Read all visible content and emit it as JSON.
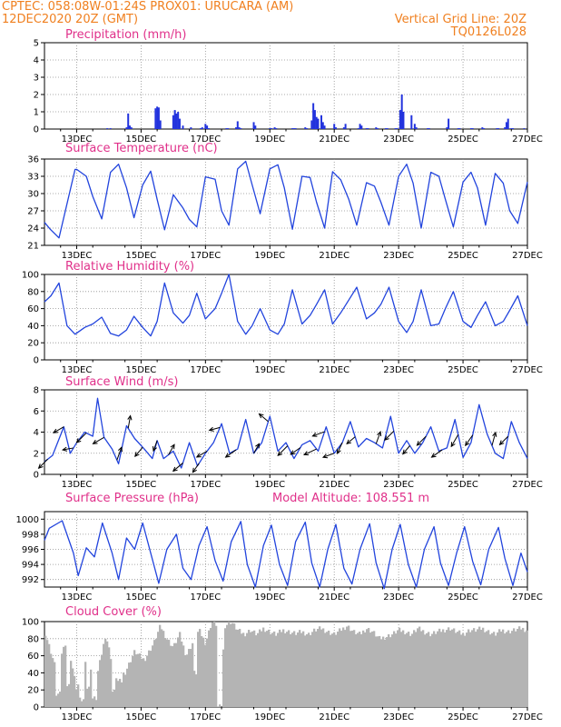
{
  "header": {
    "line1": "CPTEC:   058:08W-01:24S   PROX01: URUCARA (AM)",
    "line2": "12DEC2020 20Z (GMT)",
    "right1": "Vertical Grid Line: 20Z",
    "right2": "TQ0126L028"
  },
  "colors": {
    "header": "#f08020",
    "title": "#e0308a",
    "line": "#2244dd",
    "bar": "#2233dd",
    "cloud": "#b4b4b4",
    "grid": "#909090"
  },
  "chart_data": [
    {
      "type": "bar",
      "title": "Precipitation (mm/h)",
      "ylim": [
        0,
        5
      ],
      "yticks": [
        "0",
        "1",
        "2",
        "3",
        "4",
        "5"
      ],
      "xticks": [
        "13DEC",
        "15DEC",
        "17DEC",
        "19DEC",
        "21DEC",
        "23DEC",
        "25DEC",
        "27DEC"
      ],
      "x": [
        13.95,
        14.05,
        14.55,
        14.6,
        14.65,
        14.7,
        15.45,
        15.5,
        15.55,
        15.6,
        16.0,
        16.05,
        16.1,
        16.15,
        16.2,
        16.3,
        16.55,
        16.85,
        16.9,
        17.0,
        17.05,
        17.1,
        17.65,
        17.7,
        17.95,
        18.0,
        18.05,
        18.1,
        18.5,
        18.55,
        19.0,
        19.05,
        19.15,
        19.2,
        19.7,
        19.75,
        19.8,
        20.1,
        20.15,
        20.3,
        20.35,
        20.4,
        20.45,
        20.5,
        20.6,
        20.65,
        20.7,
        21.0,
        21.05,
        21.3,
        21.35,
        21.75,
        21.8,
        21.85,
        22.0,
        22.05,
        22.3,
        22.35,
        22.6,
        22.65,
        22.9,
        22.95,
        23.05,
        23.1,
        23.15,
        23.4,
        23.5,
        23.55,
        23.9,
        23.95,
        24.5,
        24.55,
        24.85,
        24.9,
        25.25,
        25.3,
        25.6,
        25.65,
        26.05,
        26.1,
        26.3,
        26.35,
        26.4,
        26.5,
        26.55,
        26.9
      ],
      "values": [
        0.05,
        0.05,
        0.1,
        0.9,
        0.2,
        0.1,
        1.2,
        1.3,
        1.25,
        0.5,
        0.8,
        1.1,
        0.9,
        1.0,
        0.6,
        0.2,
        0.1,
        0.05,
        0.1,
        0.3,
        0.2,
        0.05,
        0.05,
        0.05,
        0.1,
        0.45,
        0.1,
        0.05,
        0.4,
        0.2,
        0.05,
        0.05,
        0.1,
        0.05,
        0.05,
        0.05,
        0.05,
        0.1,
        0.05,
        0.5,
        1.5,
        1.1,
        0.7,
        0.6,
        0.8,
        0.4,
        0.2,
        0.3,
        0.1,
        0.1,
        0.3,
        0.05,
        0.3,
        0.2,
        0.05,
        0.05,
        0.1,
        0.05,
        0.05,
        0.05,
        0.05,
        0.05,
        1.1,
        2.0,
        1.0,
        0.8,
        0.3,
        0.1,
        0.05,
        0.05,
        0.1,
        0.6,
        0.05,
        0.05,
        0.05,
        0.05,
        0.1,
        0.05,
        0.05,
        0.05,
        0.1,
        0.4,
        0.6,
        0.05,
        0.05,
        0.05
      ]
    },
    {
      "type": "line",
      "title": "Surface Temperature (nC)",
      "ylim": [
        21,
        36
      ],
      "yticks": [
        "21",
        "24",
        "27",
        "30",
        "33",
        "36"
      ],
      "xticks": [
        "13DEC",
        "15DEC",
        "17DEC",
        "19DEC",
        "21DEC",
        "23DEC",
        "25DEC",
        "27DEC"
      ],
      "x": [
        12.0,
        12.18,
        12.45,
        12.95,
        13.0,
        13.3,
        13.5,
        13.78,
        14.05,
        14.3,
        14.55,
        14.78,
        15.05,
        15.3,
        15.5,
        15.73,
        16.0,
        16.3,
        16.5,
        16.73,
        17.0,
        17.3,
        17.5,
        17.73,
        18.0,
        18.25,
        18.45,
        18.7,
        19.0,
        19.25,
        19.45,
        19.7,
        20.0,
        20.25,
        20.45,
        20.7,
        20.95,
        21.2,
        21.45,
        21.7,
        22.0,
        22.25,
        22.45,
        22.7,
        23.0,
        23.25,
        23.45,
        23.7,
        24.0,
        24.25,
        24.45,
        24.7,
        25.0,
        25.25,
        25.45,
        25.7,
        26.0,
        26.25,
        26.45,
        26.7,
        27.0
      ],
      "values": [
        25.0,
        23.8,
        22.3,
        34.2,
        34.2,
        33.0,
        29.5,
        25.6,
        33.7,
        35.1,
        31.0,
        25.8,
        31.5,
        33.9,
        29.0,
        23.7,
        29.8,
        27.5,
        25.5,
        24.2,
        32.9,
        32.5,
        27.0,
        24.5,
        34.3,
        35.6,
        31.5,
        26.5,
        34.3,
        35.0,
        31.0,
        23.8,
        33.0,
        32.8,
        28.5,
        24.0,
        33.8,
        32.4,
        29.0,
        24.5,
        31.9,
        31.3,
        28.5,
        24.5,
        33.0,
        35.1,
        31.8,
        24.0,
        33.7,
        33.0,
        29.0,
        24.2,
        32.0,
        33.7,
        31.0,
        24.5,
        33.5,
        31.8,
        27.0,
        24.8,
        32.0
      ]
    },
    {
      "type": "line",
      "title": "Relative Humidity (%)",
      "ylim": [
        0,
        100
      ],
      "yticks": [
        "0",
        "20",
        "40",
        "60",
        "80",
        "100"
      ],
      "xticks": [
        "13DEC",
        "15DEC",
        "17DEC",
        "19DEC",
        "21DEC",
        "23DEC",
        "25DEC",
        "27DEC"
      ],
      "x": [
        12.0,
        12.2,
        12.45,
        12.7,
        12.95,
        13.25,
        13.5,
        13.78,
        14.05,
        14.3,
        14.55,
        14.78,
        15.05,
        15.3,
        15.5,
        15.73,
        16.0,
        16.3,
        16.5,
        16.73,
        17.0,
        17.3,
        17.5,
        17.73,
        18.0,
        18.25,
        18.45,
        18.7,
        19.0,
        19.25,
        19.45,
        19.7,
        20.0,
        20.25,
        20.45,
        20.7,
        20.95,
        21.2,
        21.45,
        21.7,
        22.0,
        22.25,
        22.45,
        22.7,
        23.0,
        23.25,
        23.45,
        23.7,
        24.0,
        24.25,
        24.45,
        24.7,
        25.0,
        25.25,
        25.45,
        25.7,
        26.0,
        26.25,
        26.45,
        26.7,
        27.0
      ],
      "values": [
        68.0,
        75.0,
        90.0,
        40.0,
        30.0,
        38.0,
        42.0,
        50.0,
        31.0,
        28.0,
        35.0,
        51.0,
        38.0,
        28.0,
        45.0,
        90.0,
        55.0,
        43.0,
        52.0,
        78.0,
        48.0,
        60.0,
        78.0,
        100.0,
        45.0,
        30.0,
        40.0,
        60.0,
        35.0,
        30.0,
        42.0,
        82.0,
        42.0,
        52.0,
        65.0,
        82.0,
        42.0,
        55.0,
        70.0,
        85.0,
        48.0,
        55.0,
        65.0,
        85.0,
        45.0,
        32.0,
        45.0,
        82.0,
        40.0,
        42.0,
        60.0,
        80.0,
        45.0,
        38.0,
        52.0,
        68.0,
        40.0,
        45.0,
        58.0,
        75.0,
        40.0
      ]
    },
    {
      "type": "line",
      "title": "Surface Wind (m/s)",
      "ylim": [
        0,
        8
      ],
      "yticks": [
        "0",
        "2",
        "4",
        "6",
        "8"
      ],
      "xticks": [
        "13DEC",
        "15DEC",
        "17DEC",
        "19DEC",
        "21DEC",
        "23DEC",
        "25DEC",
        "27DEC"
      ],
      "x": [
        12.0,
        12.25,
        12.6,
        12.8,
        13.0,
        13.25,
        13.5,
        13.65,
        13.85,
        14.1,
        14.3,
        14.55,
        14.8,
        15.1,
        15.35,
        15.5,
        15.7,
        16.0,
        16.25,
        16.5,
        16.75,
        17.0,
        17.25,
        17.5,
        17.75,
        18.0,
        18.25,
        18.5,
        18.75,
        19.0,
        19.25,
        19.5,
        19.75,
        20.0,
        20.25,
        20.5,
        20.75,
        21.0,
        21.25,
        21.5,
        21.75,
        22.0,
        22.25,
        22.5,
        22.75,
        23.0,
        23.25,
        23.5,
        23.75,
        24.0,
        24.25,
        24.5,
        24.75,
        25.0,
        25.25,
        25.5,
        25.75,
        26.0,
        26.25,
        26.5,
        26.75,
        27.0
      ],
      "values": [
        1.2,
        1.8,
        4.5,
        2.0,
        3.0,
        4.0,
        3.6,
        7.2,
        3.5,
        2.4,
        1.0,
        4.6,
        3.4,
        2.4,
        1.5,
        3.2,
        1.5,
        2.2,
        0.6,
        3.0,
        0.8,
        2.0,
        3.0,
        4.8,
        2.0,
        2.4,
        5.2,
        2.0,
        3.0,
        5.5,
        2.2,
        3.0,
        1.5,
        2.8,
        3.2,
        2.2,
        4.5,
        2.0,
        3.0,
        5.0,
        2.6,
        3.4,
        3.0,
        2.5,
        5.5,
        2.0,
        3.2,
        2.0,
        3.0,
        4.5,
        2.2,
        2.5,
        5.2,
        1.6,
        3.0,
        6.6,
        3.8,
        2.0,
        1.5,
        5.0,
        3.0,
        1.5
      ],
      "arrows_x": [
        12.1,
        12.6,
        12.9,
        13.3,
        13.85,
        14.25,
        14.6,
        15.05,
        15.5,
        15.85,
        16.3,
        16.8,
        17.05,
        17.45,
        17.95,
        18.5,
        18.95,
        19.55,
        19.95,
        20.45,
        20.7,
        21.0,
        21.25,
        21.65,
        22.3,
        22.85,
        23.35,
        23.85,
        24.35,
        24.85,
        25.3,
        25.9,
        26.4
      ],
      "arrows_dir_deg": [
        225,
        210,
        190,
        225,
        210,
        70,
        80,
        230,
        250,
        60,
        220,
        235,
        210,
        195,
        215,
        60,
        140,
        225,
        215,
        205,
        200,
        200,
        245,
        220,
        70,
        225,
        230,
        225,
        215,
        240,
        235,
        75,
        225
      ],
      "arrows_len": [
        14,
        13,
        12,
        15,
        14,
        15,
        14,
        13,
        12,
        13,
        14,
        12,
        13,
        12,
        14,
        12,
        13,
        15,
        13,
        15,
        14,
        13,
        13,
        12,
        14,
        14,
        12,
        14,
        14,
        15,
        14,
        15,
        13
      ]
    },
    {
      "type": "line",
      "title": "Surface Pressure (hPa)",
      "annotation": "Model Altitude: 108.551 m",
      "ylim": [
        991,
        1001
      ],
      "yticks": [
        "992",
        "994",
        "996",
        "998",
        "1000"
      ],
      "xticks": [
        "13DEC",
        "15DEC",
        "17DEC",
        "19DEC",
        "21DEC",
        "23DEC",
        "25DEC",
        "27DEC"
      ],
      "x": [
        12.0,
        12.15,
        12.55,
        12.9,
        13.05,
        13.3,
        13.55,
        13.8,
        14.1,
        14.3,
        14.55,
        14.8,
        15.05,
        15.3,
        15.55,
        15.8,
        16.1,
        16.3,
        16.55,
        16.8,
        17.05,
        17.3,
        17.55,
        17.8,
        18.1,
        18.3,
        18.55,
        18.8,
        19.05,
        19.3,
        19.55,
        19.8,
        20.1,
        20.3,
        20.55,
        20.8,
        21.05,
        21.3,
        21.55,
        21.8,
        22.1,
        22.3,
        22.55,
        22.8,
        23.05,
        23.3,
        23.55,
        23.8,
        24.1,
        24.3,
        24.55,
        24.8,
        25.05,
        25.3,
        25.55,
        25.8,
        26.1,
        26.3,
        26.55,
        26.8,
        27.0
      ],
      "values": [
        997.2,
        998.8,
        999.8,
        995.5,
        992.5,
        996.2,
        995.0,
        999.5,
        995.5,
        992.0,
        997.5,
        996.0,
        999.5,
        995.5,
        991.5,
        996.0,
        998.0,
        993.5,
        992.0,
        996.5,
        999.0,
        994.5,
        991.8,
        997.0,
        999.7,
        994.0,
        991.0,
        996.5,
        999.2,
        994.0,
        991.2,
        997.0,
        999.6,
        994.2,
        991.0,
        996.0,
        999.3,
        993.5,
        991.4,
        996.0,
        999.4,
        994.2,
        990.8,
        996.0,
        999.3,
        994.0,
        991.0,
        996.0,
        999.0,
        994.2,
        991.2,
        995.5,
        999.0,
        994.4,
        991.3,
        996.0,
        998.9,
        994.8,
        991.2,
        995.5,
        993.0
      ]
    },
    {
      "type": "bar",
      "title": "Cloud Cover (%)",
      "ylim": [
        0,
        100
      ],
      "yticks": [
        "0",
        "20",
        "40",
        "60",
        "80",
        "100"
      ],
      "xticks": [
        "13DEC",
        "15DEC",
        "17DEC",
        "19DEC",
        "21DEC",
        "23DEC",
        "25DEC",
        "27DEC"
      ],
      "profile_x": [
        12.0,
        12.35,
        12.7,
        13.0,
        13.3,
        13.6,
        13.9,
        14.2,
        14.5,
        14.8,
        15.1,
        15.4,
        15.6,
        15.8,
        16.0,
        16.2,
        16.4,
        16.6,
        16.8,
        17.0,
        17.2,
        17.4,
        17.45,
        17.6,
        17.8,
        18.0,
        18.2,
        18.4,
        18.6,
        18.8,
        19.0,
        19.2,
        19.4,
        19.6,
        19.8,
        20.0,
        20.2,
        20.4,
        20.6,
        20.8,
        21.0,
        21.2,
        21.4,
        21.6,
        21.8,
        22.0,
        22.2,
        22.4,
        22.6,
        22.8,
        23.0,
        23.2,
        23.4,
        23.6,
        23.8,
        24.0,
        24.2,
        24.4,
        24.6,
        24.8,
        25.0,
        25.2,
        25.4,
        25.6,
        25.8,
        26.0,
        26.2,
        26.4,
        26.6,
        26.8,
        27.0
      ],
      "profile_values": [
        90,
        45,
        80,
        20,
        60,
        30,
        85,
        35,
        40,
        65,
        55,
        75,
        95,
        80,
        70,
        85,
        60,
        75,
        90,
        75,
        100,
        95,
        0,
        95,
        100,
        90,
        85,
        90,
        85,
        92,
        88,
        85,
        90,
        88,
        86,
        88,
        85,
        90,
        92,
        88,
        85,
        90,
        95,
        88,
        85,
        92,
        88,
        80,
        82,
        85,
        90,
        88,
        85,
        92,
        88,
        85,
        88,
        90,
        92,
        88,
        85,
        90,
        90,
        92,
        88,
        85,
        90,
        88,
        90,
        92,
        90
      ],
      "notches_x": [
        12.42,
        12.72,
        13.15,
        13.35,
        13.55,
        14.15,
        14.35,
        16.68,
        17.45
      ],
      "notches_values": [
        15,
        25,
        8,
        22,
        10,
        18,
        30,
        40,
        0
      ]
    }
  ]
}
